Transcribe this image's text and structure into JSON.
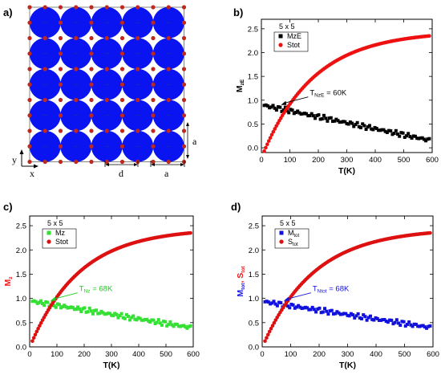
{
  "panel_a": {
    "label": "a)",
    "grid_rows": 5,
    "grid_cols": 5,
    "x_axis": "x",
    "y_axis": "y",
    "dim_d": "d",
    "dim_a_h": "a",
    "dim_a_v": "a",
    "disk_color": "#0a14f0",
    "site_color": "#c0281e"
  },
  "chart_data": [
    {
      "panel": "b)",
      "type": "scatter",
      "xlabel": "T(K)",
      "ylabel_main": "M",
      "ylabel_sub": "zE",
      "ylabel_color": "#000000",
      "xlim": [
        0,
        600
      ],
      "ylim": [
        -0.1,
        2.7
      ],
      "xticks": [
        0,
        100,
        200,
        300,
        400,
        500,
        600
      ],
      "yticks": [
        0.0,
        0.5,
        1.0,
        1.5,
        2.0,
        2.5
      ],
      "legend_title": "5 x 5",
      "legend_pos": "top-left",
      "annotation": {
        "prefix": "T",
        "sub": "NzE",
        "suffix": " = 60K",
        "color": "#000000",
        "x": 63,
        "y": 0.9
      },
      "series": [
        {
          "name": "MzE",
          "name_sub": "",
          "color": "#000000",
          "marker": "square",
          "kind": "linear",
          "x0": 10,
          "x1": 590,
          "y0": 0.89,
          "y1": 0.16
        },
        {
          "name": "Stot",
          "name_sub": "",
          "color": "#ee1111",
          "marker": "circle",
          "kind": "growth",
          "x0": 10,
          "x1": 590,
          "y0": -0.07,
          "y1": 2.35
        }
      ]
    },
    {
      "panel": "c)",
      "type": "scatter",
      "xlabel": "T(K)",
      "ylabel_main": "M",
      "ylabel_sub": "z",
      "ylabel_color": "#ee1111",
      "xlim": [
        0,
        600
      ],
      "ylim": [
        0.0,
        2.7
      ],
      "xticks": [
        0,
        100,
        200,
        300,
        400,
        500,
        600
      ],
      "yticks": [
        0.0,
        0.5,
        1.0,
        1.5,
        2.0,
        2.5
      ],
      "legend_title": "5 x 5",
      "legend_pos": "top-left",
      "annotation": {
        "prefix": "T",
        "sub": "Nz",
        "suffix": " = 68K",
        "color": "#22cc22",
        "x": 70,
        "y": 0.95
      },
      "series": [
        {
          "name": "Mz",
          "name_sub": "",
          "color": "#33e033",
          "marker": "square",
          "kind": "linear",
          "x0": 10,
          "x1": 590,
          "y0": 0.94,
          "y1": 0.4
        },
        {
          "name": "Stot",
          "name_sub": "",
          "color": "#dd1111",
          "marker": "circle",
          "kind": "growth",
          "x0": 10,
          "x1": 590,
          "y0": 0.12,
          "y1": 2.35
        }
      ]
    },
    {
      "panel": "d)",
      "type": "scatter",
      "xlabel": "T(K)",
      "ylabel_main": "M",
      "ylabel_sub": "tot",
      "ylabel_mid": ", S",
      "ylabel_sub2": "tot",
      "ylabel_color": "#1111dd",
      "ylabel_color2": "#ee1111",
      "xlim": [
        0,
        600
      ],
      "ylim": [
        0.0,
        2.7
      ],
      "xticks": [
        0,
        100,
        200,
        300,
        400,
        500,
        600
      ],
      "yticks": [
        0.0,
        0.5,
        1.0,
        1.5,
        2.0,
        2.5
      ],
      "legend_title": "5 x 5",
      "legend_pos": "top-left",
      "annotation": {
        "prefix": "T",
        "sub": "Ntot",
        "suffix": " = 68K",
        "color": "#1111dd",
        "x": 70,
        "y": 0.95
      },
      "series": [
        {
          "name": "M",
          "name_sub": "tot",
          "color": "#1111dd",
          "marker": "square",
          "kind": "linear",
          "x0": 10,
          "x1": 590,
          "y0": 0.93,
          "y1": 0.4
        },
        {
          "name": "S",
          "name_sub": "tot",
          "color": "#dd1111",
          "marker": "circle",
          "kind": "growth",
          "x0": 10,
          "x1": 590,
          "y0": 0.12,
          "y1": 2.35
        }
      ]
    }
  ]
}
